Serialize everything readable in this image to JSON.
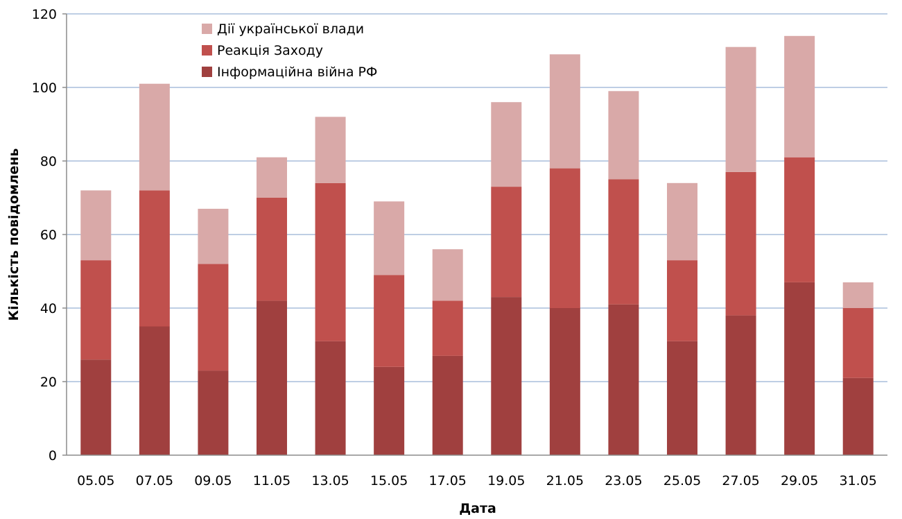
{
  "chart_data": {
    "type": "bar",
    "stacked": true,
    "categories": [
      "05.05",
      "07.05",
      "09.05",
      "11.05",
      "13.05",
      "15.05",
      "17.05",
      "19.05",
      "21.05",
      "23.05",
      "25.05",
      "27.05",
      "29.05",
      "31.05"
    ],
    "series": [
      {
        "name": "Інформаційна війна РФ",
        "color": "#a0403f",
        "values": [
          26,
          35,
          23,
          42,
          31,
          24,
          27,
          43,
          40,
          41,
          31,
          38,
          47,
          21
        ]
      },
      {
        "name": "Реакція Заходу",
        "color": "#c0504d",
        "values": [
          27,
          37,
          29,
          28,
          43,
          25,
          15,
          30,
          38,
          34,
          22,
          39,
          34,
          19
        ]
      },
      {
        "name": "Дії української влади",
        "color": "#d9a9a8",
        "values": [
          19,
          29,
          15,
          11,
          18,
          20,
          14,
          23,
          31,
          24,
          21,
          34,
          33,
          7
        ]
      }
    ],
    "legend_order": [
      "Дії української влади",
      "Реакція Заходу",
      "Інформаційна війна РФ"
    ],
    "xlabel": "Дата",
    "ylabel": "Кількість повідомлень",
    "ylim": [
      0,
      120
    ],
    "yticks": [
      0,
      20,
      40,
      60,
      80,
      100,
      120
    ],
    "grid": true,
    "grid_color": "#a9bedc",
    "legend_position": "top-left"
  }
}
